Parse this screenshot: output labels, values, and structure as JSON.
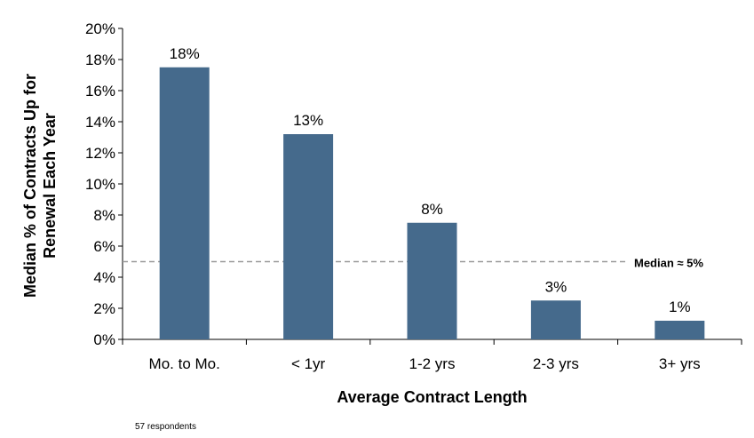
{
  "chart_data": {
    "type": "bar",
    "categories": [
      "Mo. to Mo.",
      "< 1yr",
      "1-2 yrs",
      "2-3 yrs",
      "3+ yrs"
    ],
    "values": [
      17.5,
      13.2,
      7.5,
      2.5,
      1.2
    ],
    "data_labels": [
      "18%",
      "13%",
      "8%",
      "3%",
      "1%"
    ],
    "xlabel": "Average Contract Length",
    "ylabel": "Median % of Contracts Up for Renewal Each Year",
    "ylim": [
      0,
      20
    ],
    "yticks": [
      0,
      2,
      4,
      6,
      8,
      10,
      12,
      14,
      16,
      18,
      20
    ],
    "ytick_labels": [
      "0%",
      "2%",
      "4%",
      "6%",
      "8%",
      "10%",
      "12%",
      "14%",
      "16%",
      "18%",
      "20%"
    ],
    "grid": false,
    "legend": "none",
    "bar_color": "#456a8c",
    "reference_line": {
      "value": 5,
      "label": "Median  ≈ 5%",
      "color": "#999999",
      "style": "dashed"
    }
  },
  "footnote": "57 respondents"
}
